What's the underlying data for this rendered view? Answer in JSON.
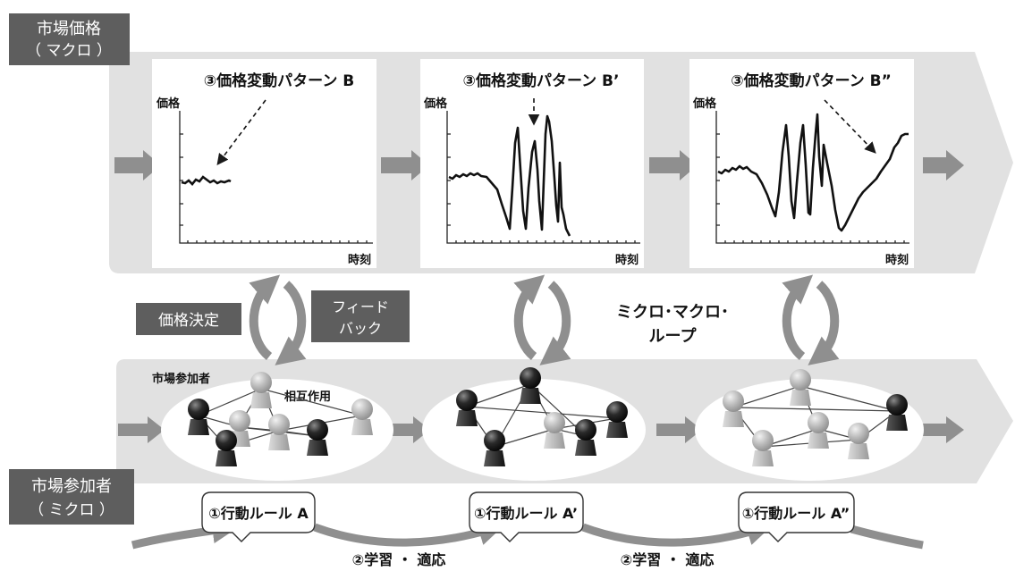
{
  "labels": {
    "macro_box": [
      "市場価格",
      "（ マクロ ）"
    ],
    "micro_box": [
      "市場参加者",
      "（ ミクロ ）"
    ],
    "price_decision": "価格決定",
    "feedback": [
      "フィード",
      "バック"
    ],
    "micro_macro_loop": [
      "ミクロ･マクロ･",
      "ループ"
    ],
    "participants": "市場参加者",
    "interaction": "相互作用",
    "learning": "②学習 ・ 適応"
  },
  "panels": [
    {
      "title": "③価格変動パターン B",
      "ylabel": "価格",
      "xlabel": "時刻"
    },
    {
      "title": "③価格変動パターン B’",
      "ylabel": "価格",
      "xlabel": "時刻"
    },
    {
      "title": "③価格変動パターン B”",
      "ylabel": "価格",
      "xlabel": "時刻"
    }
  ],
  "rules": [
    "①行動ルール A",
    "①行動ルール A’",
    "①行動ルール A”"
  ],
  "colors": {
    "band": "#e1e1e1",
    "arrow": "#8f8f8f",
    "label_box": "#5e5e5e",
    "dark_agent": "#1c1c1c",
    "light_agent": "#b9b9b9"
  }
}
